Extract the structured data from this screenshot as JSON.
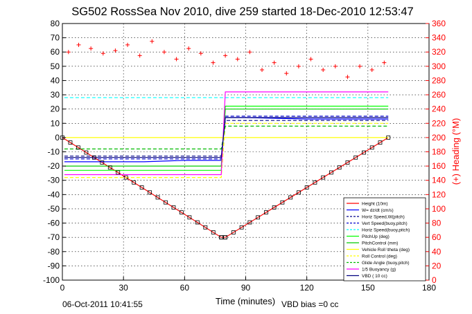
{
  "chart_data": {
    "type": "line",
    "title": "SG502 RossSea Nov 2010, dive 259 started 18-Dec-2010 12:53:47",
    "xlabel": "Time (minutes)",
    "ylabel_right": "(+) Heading (°M)",
    "xlim": [
      0,
      180
    ],
    "ylim": [
      -100,
      80
    ],
    "ylim_right": [
      0,
      360
    ],
    "x_ticks": [
      "0",
      "30",
      "60",
      "90",
      "120",
      "150",
      "180"
    ],
    "y_ticks": [
      "80",
      "70",
      "60",
      "50",
      "40",
      "30",
      "20",
      "10",
      "0",
      "-10",
      "-20",
      "-30",
      "-40",
      "-50",
      "-60",
      "-70",
      "-80",
      "-90",
      "-100"
    ],
    "y_ticks_right": [
      "360",
      "340",
      "320",
      "300",
      "280",
      "260",
      "240",
      "220",
      "200",
      "180",
      "160",
      "140",
      "120",
      "100",
      "80",
      "60",
      "40",
      "20",
      "0"
    ],
    "grid": true,
    "legend_position": "bottom-right",
    "footer_left": "06-Oct-2011 10:41:55",
    "footer_right": "VBD bias =0 cc",
    "series": [
      {
        "name": "Height (10m)",
        "color": "#ff0000",
        "style": "solid",
        "x": [
          0,
          78,
          80,
          160
        ],
        "y": [
          0,
          -70,
          -70,
          0
        ]
      },
      {
        "name": "W= dz/dt (cm/s)",
        "color": "#0000ff",
        "style": "solid",
        "x": [
          1,
          20,
          40,
          60,
          78,
          80,
          90,
          120,
          150,
          160
        ],
        "y": [
          -17,
          -17,
          -17,
          -16,
          -16,
          14,
          14,
          13,
          13,
          13
        ]
      },
      {
        "name": "Horiz Speed,W(pitch)",
        "color": "#00008b",
        "style": "dash",
        "x": [
          1,
          78,
          80,
          160
        ],
        "y": [
          -13,
          -13,
          12,
          12
        ]
      },
      {
        "name": "Vert Speed(buoy,pitch)",
        "color": "#0000cd",
        "style": "dash",
        "x": [
          1,
          78,
          80,
          160
        ],
        "y": [
          -15,
          -15,
          15,
          15
        ]
      },
      {
        "name": "Horiz Speed(buoy,pitch)",
        "color": "#00ffff",
        "style": "dash",
        "x": [
          1,
          78,
          80,
          160
        ],
        "y": [
          28,
          28,
          28,
          28
        ]
      },
      {
        "name": "PitchUp (deg)",
        "color": "#00ff00",
        "style": "solid",
        "x": [
          1,
          78,
          80,
          160
        ],
        "y": [
          -23,
          -23,
          22,
          22
        ]
      },
      {
        "name": "PitchControl (mm)",
        "color": "#00cc00",
        "style": "solid",
        "x": [
          1,
          78,
          80,
          160
        ],
        "y": [
          -20,
          -20,
          20,
          20
        ]
      },
      {
        "name": "Vehicle Roll \\theta (deg)",
        "color": "#ffff00",
        "style": "solid",
        "x": [
          1,
          78,
          80,
          160
        ],
        "y": [
          0,
          0,
          0,
          0
        ]
      },
      {
        "name": "Roll Control (deg)",
        "color": "#ffff00",
        "style": "dash",
        "x": [
          1,
          78,
          80,
          160
        ],
        "y": [
          -28,
          -28,
          10,
          10
        ]
      },
      {
        "name": "Glide Angle (buoy,pitch)",
        "color": "#00bb00",
        "style": "dash",
        "x": [
          1,
          78,
          80,
          160
        ],
        "y": [
          -8,
          -8,
          8,
          8
        ]
      },
      {
        "name": "1/5 Buoyancy (g)",
        "color": "#ff00ff",
        "style": "solid",
        "x": [
          1,
          78,
          80,
          160
        ],
        "y": [
          -26,
          -26,
          32,
          32
        ]
      },
      {
        "name": "VBD ( 10 cc)",
        "color": "#000080",
        "style": "solid",
        "x": [
          1,
          78,
          80,
          160
        ],
        "y": [
          -14,
          -14,
          14,
          14
        ]
      }
    ],
    "heading_series": {
      "name": "(+) Heading (°M)",
      "color": "#ff0000",
      "marker": "+",
      "x": [
        3,
        8,
        14,
        20,
        26,
        32,
        38,
        44,
        50,
        56,
        62,
        68,
        74,
        80,
        86,
        92,
        98,
        104,
        110,
        116,
        122,
        128,
        134,
        140,
        146,
        152,
        158
      ],
      "y": [
        320,
        330,
        325,
        318,
        322,
        330,
        315,
        335,
        320,
        310,
        325,
        318,
        305,
        315,
        310,
        320,
        295,
        305,
        290,
        300,
        310,
        295,
        300,
        285,
        300,
        295,
        305
      ]
    }
  }
}
